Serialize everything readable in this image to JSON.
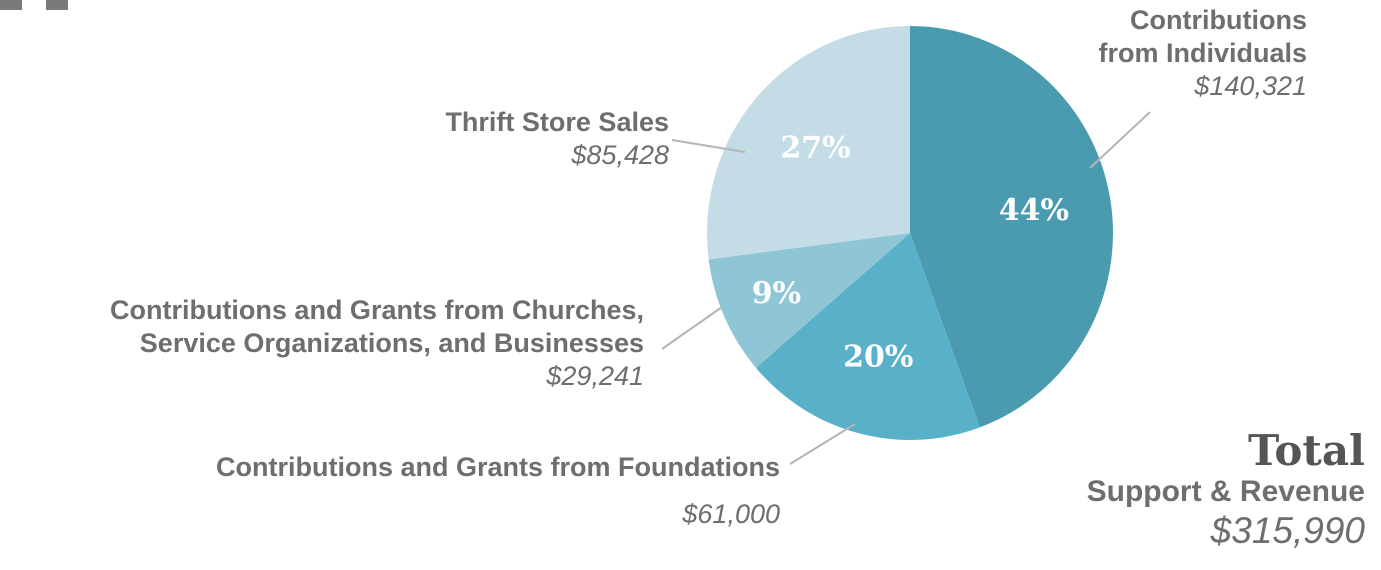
{
  "chart_data": {
    "type": "pie",
    "categories": [
      "Contributions from Individuals",
      "Contributions and Grants from Foundations",
      "Contributions and Grants from Churches, Service Organizations, and  Businesses",
      "Thrift Store Sales"
    ],
    "values": [
      140321,
      61000,
      29241,
      85428
    ],
    "percent_labels": [
      "44%",
      "20%",
      "9%",
      "27%"
    ],
    "amount_labels": [
      "$140,321",
      "$61,000",
      "$29,241",
      "$85,428"
    ],
    "colors": [
      "#4a9bb0",
      "#58b1c8",
      "#8ec6d6",
      "#c3dce6"
    ],
    "start_angle_deg": 0,
    "direction": "clockwise"
  },
  "labels": {
    "individuals_line1": "Contributions",
    "individuals_line2": "from Individuals",
    "individuals_amount": "$140,321",
    "thrift_name": "Thrift Store Sales",
    "thrift_amount": "$85,428",
    "churches_line1": "Contributions and Grants from Churches,",
    "churches_line2": "Service Organizations, and  Businesses",
    "churches_amount": "$29,241",
    "foundations_name": "Contributions and Grants from Foundations",
    "foundations_amount": "$61,000"
  },
  "total": {
    "word": "Total",
    "subtitle": "Support & Revenue",
    "amount": "$315,990"
  }
}
